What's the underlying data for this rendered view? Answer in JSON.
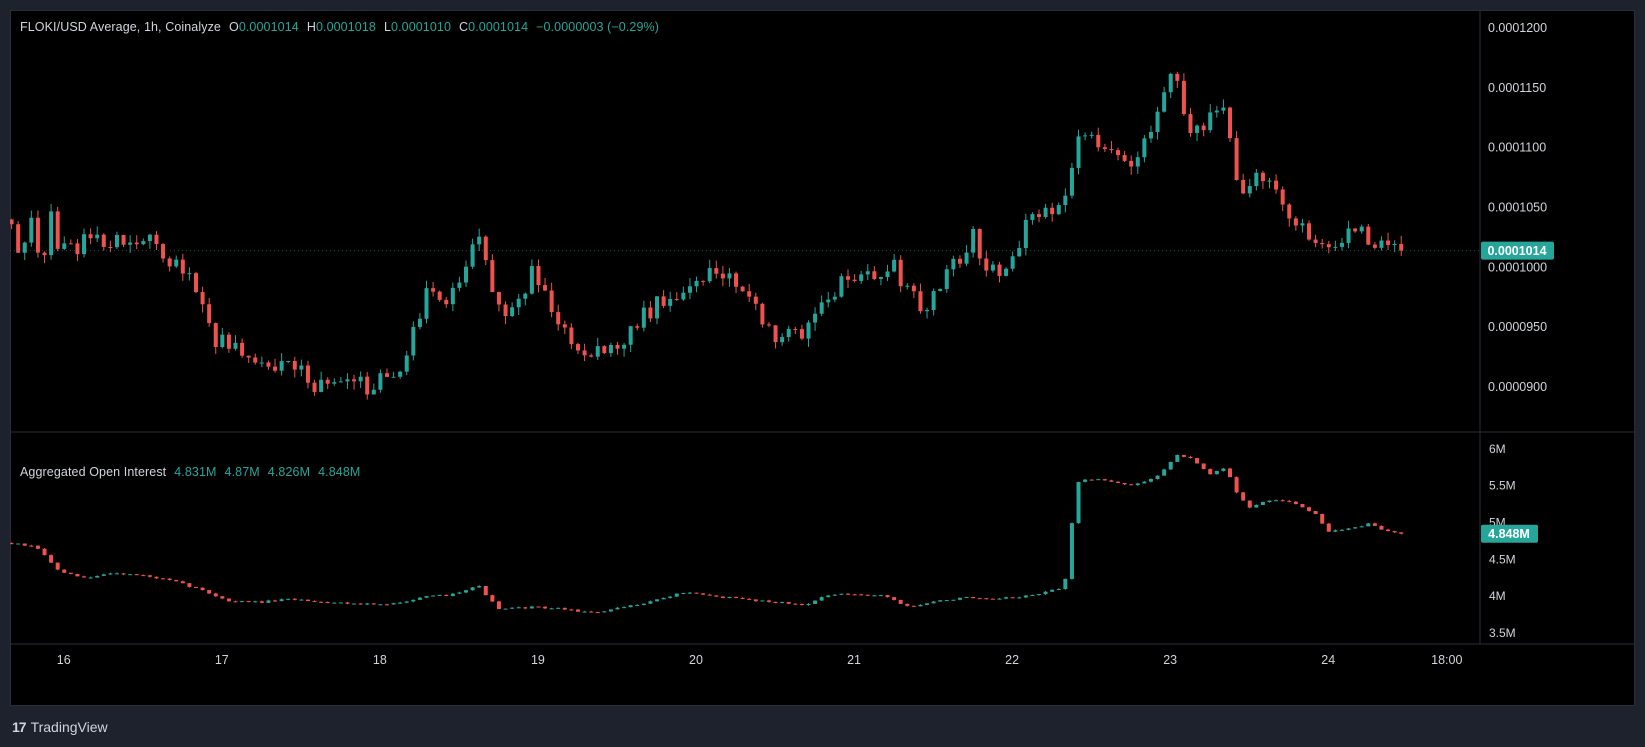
{
  "price_legend": {
    "symbol": "FLOKI/USD Average, 1h, Coinalyze",
    "o_label": "O",
    "o": "0.0001014",
    "h_label": "H",
    "h": "0.0001018",
    "l_label": "L",
    "l": "0.0001010",
    "c_label": "C",
    "c": "0.0001014",
    "change": "−0.0000003 (−0.29%)"
  },
  "oi_legend": {
    "title": "Aggregated Open Interest",
    "o": "4.831M",
    "h": "4.87M",
    "l": "4.826M",
    "c": "4.848M"
  },
  "branding": {
    "logo": "TradingView"
  },
  "colors": {
    "up": "#26a69a",
    "down": "#ef5350",
    "background": "#000000",
    "frame": "#1e222d"
  },
  "chart_data": [
    {
      "type": "candlestick",
      "interval": "1h",
      "y_ticks": [
        "0.0001200",
        "0.0001150",
        "0.0001100",
        "0.0001050",
        "0.0001000",
        "0.0000950",
        "0.0000900"
      ],
      "y_tick_values": [
        0.00012,
        0.000115,
        0.00011,
        0.000105,
        0.0001,
        9.5e-05,
        9e-05
      ],
      "ylim": [
        8.625e-05,
        0.0001215
      ],
      "last_price_label": "0.0001014",
      "last_price": 0.0001014,
      "x_ticks": [
        "16",
        "17",
        "18",
        "19",
        "20",
        "21",
        "22",
        "23",
        "24",
        "18:00"
      ],
      "x_tick_values": [
        1,
        2,
        3,
        4,
        5,
        6,
        7,
        8,
        9,
        9.75
      ],
      "x_range": [
        0.66,
        9.96
      ],
      "segments": [
        [
          0.67,
          0.000104
        ],
        [
          0.72,
          0.0001012
        ],
        [
          0.8,
          0.0001035
        ],
        [
          0.85,
          0.0001001
        ],
        [
          0.92,
          0.000104
        ],
        [
          0.98,
          0.0001012
        ],
        [
          1.05,
          0.0001015
        ],
        [
          1.12,
          0.0001022
        ],
        [
          1.22,
          0.0001024
        ],
        [
          1.35,
          0.0001022
        ],
        [
          1.5,
          0.0001025
        ],
        [
          1.6,
          0.0001013
        ],
        [
          1.75,
          0.0001
        ],
        [
          1.85,
          9.78e-05
        ],
        [
          1.97,
          9.38e-05
        ],
        [
          2.15,
          9.28e-05
        ],
        [
          2.3,
          9.15e-05
        ],
        [
          2.45,
          9.15e-05
        ],
        [
          2.6,
          9.02e-05
        ],
        [
          2.8,
          9.01e-05
        ],
        [
          2.95,
          9.01e-05
        ],
        [
          3.1,
          9.11e-05
        ],
        [
          3.2,
          9.38e-05
        ],
        [
          3.3,
          9.78e-05
        ],
        [
          3.45,
          9.75e-05
        ],
        [
          3.62,
          0.0001025
        ],
        [
          3.72,
          9.75e-05
        ],
        [
          3.82,
          9.6e-05
        ],
        [
          3.98,
          9.98e-05
        ],
        [
          4.1,
          9.55e-05
        ],
        [
          4.25,
          9.35e-05
        ],
        [
          4.35,
          9.29e-05
        ],
        [
          4.5,
          9.3e-05
        ],
        [
          4.63,
          9.55e-05
        ],
        [
          4.8,
          9.75e-05
        ],
        [
          4.95,
          9.85e-05
        ],
        [
          5.1,
          9.98e-05
        ],
        [
          5.22,
          9.92e-05
        ],
        [
          5.35,
          9.7e-05
        ],
        [
          5.5,
          9.45e-05
        ],
        [
          5.65,
          9.42e-05
        ],
        [
          5.78,
          9.68e-05
        ],
        [
          5.92,
          9.85e-05
        ],
        [
          6.1,
          9.91e-05
        ],
        [
          6.25,
          0.0001005
        ],
        [
          6.35,
          9.75e-05
        ],
        [
          6.45,
          9.65e-05
        ],
        [
          6.6,
          9.95e-05
        ],
        [
          6.75,
          0.0001025
        ],
        [
          6.85,
          0.0001
        ],
        [
          6.98,
          0.0001
        ],
        [
          7.05,
          0.0001025
        ],
        [
          7.18,
          0.000105
        ],
        [
          7.28,
          0.000104
        ],
        [
          7.35,
          0.0001065
        ],
        [
          7.42,
          0.0001105
        ],
        [
          7.52,
          0.0001108
        ],
        [
          7.65,
          0.0001095
        ],
        [
          7.75,
          0.0001088
        ],
        [
          7.88,
          0.0001115
        ],
        [
          7.98,
          0.0001163
        ],
        [
          8.05,
          0.0001148
        ],
        [
          8.12,
          0.0001118
        ],
        [
          8.2,
          0.000112
        ],
        [
          8.35,
          0.0001128
        ],
        [
          8.45,
          0.0001055
        ],
        [
          8.55,
          0.0001075
        ],
        [
          8.65,
          0.0001065
        ],
        [
          8.75,
          0.0001045
        ],
        [
          8.85,
          0.0001035
        ],
        [
          8.95,
          0.0001015
        ],
        [
          9.05,
          0.000102
        ],
        [
          9.2,
          0.0001032
        ],
        [
          9.3,
          0.0001017
        ],
        [
          9.45,
          0.0001014
        ]
      ],
      "hourly_start": 0.67,
      "hourly_end": 9.45,
      "hours_per_unit": 24
    },
    {
      "type": "candlestick",
      "title": "Aggregated Open Interest",
      "y_ticks": [
        "6M",
        "5.5M",
        "5M",
        "4.5M",
        "4M",
        "3.5M"
      ],
      "y_tick_values": [
        6,
        5.5,
        5,
        4.5,
        4,
        3.5
      ],
      "ylim": [
        3.35,
        6.23
      ],
      "last_value_label": "4.848M",
      "last_value": 4.848,
      "segments": [
        [
          0.67,
          4.72
        ],
        [
          0.83,
          4.66
        ],
        [
          0.98,
          4.32
        ],
        [
          1.15,
          4.24
        ],
        [
          1.3,
          4.32
        ],
        [
          1.5,
          4.28
        ],
        [
          1.7,
          4.2
        ],
        [
          1.85,
          4.1
        ],
        [
          2.05,
          3.93
        ],
        [
          2.25,
          3.92
        ],
        [
          2.45,
          3.96
        ],
        [
          2.65,
          3.92
        ],
        [
          2.85,
          3.9
        ],
        [
          3.05,
          3.88
        ],
        [
          3.25,
          3.98
        ],
        [
          3.45,
          4.02
        ],
        [
          3.62,
          4.15
        ],
        [
          3.75,
          3.82
        ],
        [
          3.95,
          3.85
        ],
        [
          4.15,
          3.83
        ],
        [
          4.35,
          3.77
        ],
        [
          4.55,
          3.85
        ],
        [
          4.75,
          3.95
        ],
        [
          4.92,
          4.05
        ],
        [
          5.1,
          4.0
        ],
        [
          5.3,
          3.96
        ],
        [
          5.5,
          3.92
        ],
        [
          5.68,
          3.88
        ],
        [
          5.85,
          4.02
        ],
        [
          6.05,
          4.02
        ],
        [
          6.2,
          4.0
        ],
        [
          6.35,
          3.85
        ],
        [
          6.52,
          3.93
        ],
        [
          6.7,
          3.98
        ],
        [
          6.85,
          3.95
        ],
        [
          7.0,
          3.98
        ],
        [
          7.15,
          4.02
        ],
        [
          7.3,
          4.1
        ],
        [
          7.35,
          4.28
        ],
        [
          7.4,
          5.55
        ],
        [
          7.55,
          5.6
        ],
        [
          7.75,
          5.5
        ],
        [
          7.9,
          5.6
        ],
        [
          8.05,
          5.92
        ],
        [
          8.12,
          5.88
        ],
        [
          8.25,
          5.65
        ],
        [
          8.35,
          5.75
        ],
        [
          8.42,
          5.42
        ],
        [
          8.5,
          5.2
        ],
        [
          8.65,
          5.32
        ],
        [
          8.8,
          5.25
        ],
        [
          8.92,
          5.12
        ],
        [
          9.0,
          4.88
        ],
        [
          9.15,
          4.92
        ],
        [
          9.25,
          4.98
        ],
        [
          9.35,
          4.9
        ],
        [
          9.45,
          4.848
        ]
      ]
    }
  ]
}
